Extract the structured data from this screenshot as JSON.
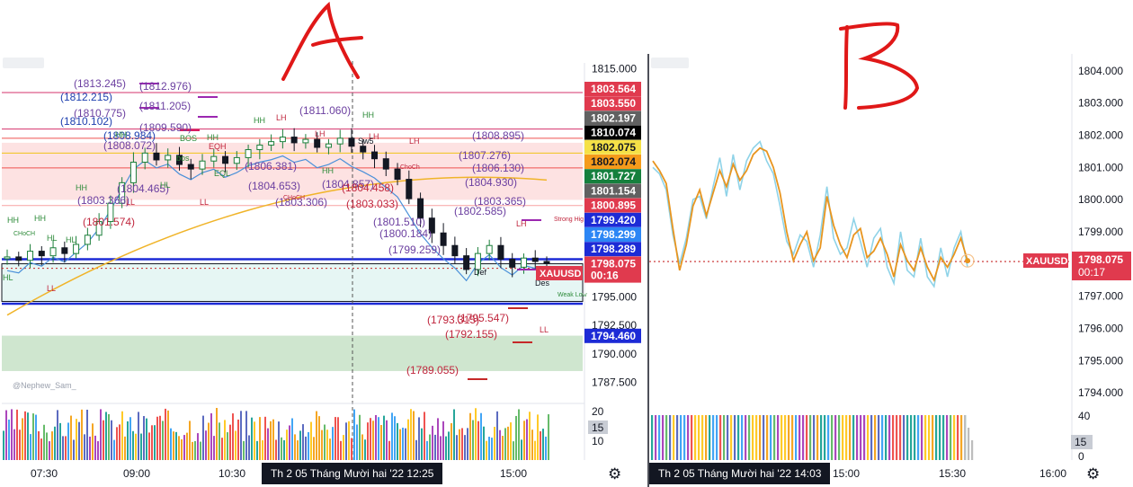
{
  "annotations": {
    "left_letter": "A",
    "right_letter": "B"
  },
  "left_panel": {
    "watermark": "@Nephew_Sam_",
    "date_badge": "Th 2 05 Tháng Mười hai '22   12:25",
    "time_labels": [
      "07:30",
      "09:00",
      "10:30",
      "15:00"
    ],
    "price_ticks": [
      "1815.000",
      "1795.000",
      "1792.500",
      "1790.000",
      "1787.500"
    ],
    "volume_ticks": [
      "20",
      "15",
      "10"
    ],
    "volume_badge": "15",
    "price_badges": [
      {
        "text": "1803.564",
        "bg": "#e03a4e",
        "fg": "#ffffff"
      },
      {
        "text": "1803.550",
        "bg": "#e03a4e",
        "fg": "#ffffff"
      },
      {
        "text": "1802.197",
        "bg": "#616161",
        "fg": "#ffffff"
      },
      {
        "text": "1810.074",
        "bg": "#000000",
        "fg": "#ffffff"
      },
      {
        "text": "1802.075",
        "bg": "#f5e147",
        "fg": "#131722"
      },
      {
        "text": "1802.074",
        "bg": "#f59b1b",
        "fg": "#131722"
      },
      {
        "text": "1801.727",
        "bg": "#15803d",
        "fg": "#ffffff"
      },
      {
        "text": "1801.154",
        "bg": "#616161",
        "fg": "#ffffff"
      },
      {
        "text": "1800.895",
        "bg": "#e03a4e",
        "fg": "#ffffff"
      },
      {
        "text": "1799.420",
        "bg": "#1d2bd6",
        "fg": "#ffffff"
      },
      {
        "text": "1798.299",
        "bg": "#2c86f5",
        "fg": "#ffffff"
      },
      {
        "text": "1798.289",
        "bg": "#1d2bd6",
        "fg": "#ffffff"
      },
      {
        "text": "1798.075",
        "bg": "#e03a4e",
        "fg": "#ffffff"
      },
      {
        "text": "00:16",
        "bg": "#e03a4e",
        "fg": "#ffffff"
      },
      {
        "text": "1794.460",
        "bg": "#1d2bd6",
        "fg": "#ffffff"
      }
    ],
    "symbol_tag": "XAUUSD",
    "level_labels": [
      {
        "text": "(1813.245)",
        "color": "#6b3fa0"
      },
      {
        "text": "(1812.976)",
        "color": "#6b3fa0"
      },
      {
        "text": "(1812.215)",
        "color": "#1e40af"
      },
      {
        "text": "(1810.775)",
        "color": "#6b3fa0"
      },
      {
        "text": "(1811.205)",
        "color": "#6b3fa0"
      },
      {
        "text": "(1810.102)",
        "color": "#1e40af"
      },
      {
        "text": "(1809.590)",
        "color": "#6b3fa0"
      },
      {
        "text": "(1811.060)",
        "color": "#6b3fa0"
      },
      {
        "text": "(1808.984)",
        "color": "#1e40af"
      },
      {
        "text": "(1808.072)",
        "color": "#6b3fa0"
      },
      {
        "text": "(1808.895)",
        "color": "#6b3fa0"
      },
      {
        "text": "(1807.276)",
        "color": "#6b3fa0"
      },
      {
        "text": "(1806.381)",
        "color": "#6b3fa0"
      },
      {
        "text": "(1806.130)",
        "color": "#6b3fa0"
      },
      {
        "text": "(1804.653)",
        "color": "#6b3fa0"
      },
      {
        "text": "(1804.857)",
        "color": "#6b3fa0"
      },
      {
        "text": "(1804.930)",
        "color": "#6b3fa0"
      },
      {
        "text": "(1804.465)",
        "color": "#6b3fa0"
      },
      {
        "text": "(1804.458)",
        "color": "#c0263d"
      },
      {
        "text": "(1803.366)",
        "color": "#6b3fa0"
      },
      {
        "text": "(1803.306)",
        "color": "#6b3fa0"
      },
      {
        "text": "(1803.033)",
        "color": "#c0263d"
      },
      {
        "text": "(1803.365)",
        "color": "#6b3fa0"
      },
      {
        "text": "(1802.585)",
        "color": "#6b3fa0"
      },
      {
        "text": "(1801.574)",
        "color": "#c0263d"
      },
      {
        "text": "(1801.510)",
        "color": "#6b3fa0"
      },
      {
        "text": "(1800.184)",
        "color": "#6b3fa0"
      },
      {
        "text": "(1799.259)",
        "color": "#6b3fa0"
      },
      {
        "text": "(1795.547)",
        "color": "#c0263d"
      },
      {
        "text": "(1793.315)",
        "color": "#c0263d"
      },
      {
        "text": "(1792.155)",
        "color": "#c0263d"
      },
      {
        "text": "(1789.055)",
        "color": "#c0263d"
      }
    ],
    "structure_tags": [
      {
        "text": "HH",
        "color": "#2e8b3a"
      },
      {
        "text": "HH",
        "color": "#2e8b3a"
      },
      {
        "text": "HH",
        "color": "#2e8b3a"
      },
      {
        "text": "HH",
        "color": "#2e8b3a"
      },
      {
        "text": "HH",
        "color": "#2e8b3a"
      },
      {
        "text": "HH",
        "color": "#2e8b3a"
      },
      {
        "text": "HH",
        "color": "#2e8b3a"
      },
      {
        "text": "HH",
        "color": "#2e8b3a"
      },
      {
        "text": "HL",
        "color": "#2e8b3a"
      },
      {
        "text": "HL",
        "color": "#2e8b3a"
      },
      {
        "text": "HL",
        "color": "#2e8b3a"
      },
      {
        "text": "HL",
        "color": "#2e8b3a"
      },
      {
        "text": "LL",
        "color": "#c0263d"
      },
      {
        "text": "LL",
        "color": "#c0263d"
      },
      {
        "text": "LL",
        "color": "#c0263d"
      },
      {
        "text": "LL",
        "color": "#c0263d"
      },
      {
        "text": "LH",
        "color": "#c0263d"
      },
      {
        "text": "LH",
        "color": "#c0263d"
      },
      {
        "text": "LH",
        "color": "#c0263d"
      },
      {
        "text": "LH",
        "color": "#c0263d"
      },
      {
        "text": "LH",
        "color": "#c0263d"
      },
      {
        "text": "CHoCH",
        "color": "#2e8b3a"
      },
      {
        "text": "CHoCH",
        "color": "#c0263d"
      },
      {
        "text": "ChoCh",
        "color": "#c0263d"
      },
      {
        "text": "BOS",
        "color": "#2e8b3a"
      },
      {
        "text": "bos",
        "color": "#2e8b3a"
      },
      {
        "text": "EQL",
        "color": "#2e8b3a"
      },
      {
        "text": "EQH",
        "color": "#c0263d"
      },
      {
        "text": "Strong High",
        "color": "#c0263d"
      },
      {
        "text": "Weak Low",
        "color": "#2e8b3a"
      },
      {
        "text": "Sw5",
        "color": "#131722"
      },
      {
        "text": "Def",
        "color": "#131722"
      },
      {
        "text": "Des",
        "color": "#131722"
      }
    ]
  },
  "right_panel": {
    "date_badge": "Th 2 05 Tháng Mười hai '22   14:03",
    "time_labels": [
      "15:00",
      "15:30",
      "16:00"
    ],
    "price_ticks": [
      "1804.000",
      "1803.000",
      "1802.000",
      "1801.000",
      "1800.000",
      "1799.000",
      "1798.000",
      "1797.000",
      "1796.000",
      "1795.000",
      "1794.000"
    ],
    "volume_ticks": [
      "40",
      "0"
    ],
    "volume_badge": "15",
    "symbol_tag": "XAUUSD",
    "price_badge": "1798.075",
    "timer_badge": "00:17"
  },
  "chart_data": [
    {
      "type": "line",
      "title": "",
      "xlabel": "",
      "ylabel": "",
      "ylim": [
        1787.0,
        1815.5
      ],
      "x_ticks": [
        "07:30",
        "09:00",
        "10:30",
        "15:00"
      ],
      "y_ticks": [
        1815.0,
        1795.0,
        1792.5,
        1790.0,
        1787.5
      ],
      "series": [
        {
          "values": [
            1798.5,
            1798.2,
            1799.0,
            1798.6,
            1799.3,
            1798.8,
            1799.6,
            1800.4,
            1801.6,
            1803.2,
            1805.0,
            1806.8,
            1807.6,
            1807.0,
            1807.4,
            1806.6,
            1806.2,
            1806.9,
            1807.3,
            1806.7,
            1807.2,
            1807.9,
            1808.3,
            1808.6,
            1809.0,
            1808.5,
            1808.8,
            1808.1,
            1808.4,
            1808.9,
            1808.2,
            1807.7,
            1807.1,
            1806.2,
            1805.3,
            1803.6,
            1801.9,
            1800.6,
            1799.5,
            1798.6,
            1797.4,
            1798.8,
            1799.5,
            1798.3,
            1797.6,
            1798.4,
            1798.1,
            1798.0
          ]
        }
      ],
      "horizontal_levels": [
        1812.9,
        1809.7,
        1808.9,
        1807.6,
        1806.3,
        1803.0,
        1798.3,
        1797.5,
        1794.4
      ],
      "zones": [
        {
          "from": 1803.5,
          "to": 1808.5,
          "color": "#fde2e2"
        },
        {
          "from": 1794.6,
          "to": 1797.9,
          "color": "#e6f6f4"
        },
        {
          "from": 1788.5,
          "to": 1791.6,
          "color": "#cfe6cf"
        }
      ]
    },
    {
      "type": "line",
      "title": "",
      "xlabel": "",
      "ylabel": "",
      "ylim": [
        1793.5,
        1804.3
      ],
      "x_ticks": [
        "15:00",
        "15:30",
        "16:00"
      ],
      "y_ticks": [
        1804.0,
        1803.0,
        1802.0,
        1801.0,
        1800.0,
        1799.0,
        1798.0,
        1797.0,
        1796.0,
        1795.0,
        1794.0
      ],
      "series": [
        {
          "values": [
            1801.2,
            1800.9,
            1800.5,
            1799.1,
            1797.8,
            1798.6,
            1799.8,
            1800.3,
            1799.5,
            1800.2,
            1800.9,
            1800.4,
            1801.1,
            1800.6,
            1800.9,
            1801.4,
            1801.6,
            1801.5,
            1801.0,
            1800.2,
            1799.0,
            1798.1,
            1798.6,
            1799.0,
            1798.1,
            1798.5,
            1800.1,
            1799.2,
            1798.6,
            1798.2,
            1798.9,
            1799.1,
            1798.2,
            1798.4,
            1798.8,
            1798.3,
            1797.6,
            1798.6,
            1798.1,
            1797.8,
            1798.5,
            1797.9,
            1797.5,
            1798.2,
            1797.9,
            1798.3,
            1798.8,
            1798.1
          ]
        },
        {
          "values": [
            1801.0,
            1800.8,
            1800.3,
            1798.9,
            1798.0,
            1798.8,
            1800.0,
            1800.1,
            1799.4,
            1800.4,
            1801.3,
            1800.1,
            1801.4,
            1800.3,
            1801.2,
            1801.6,
            1801.8,
            1801.2,
            1800.8,
            1799.8,
            1798.7,
            1798.3,
            1798.9,
            1798.7,
            1797.9,
            1798.9,
            1800.4,
            1798.8,
            1798.3,
            1798.5,
            1799.4,
            1798.7,
            1797.9,
            1798.8,
            1799.1,
            1797.9,
            1797.4,
            1799.0,
            1797.8,
            1797.6,
            1798.8,
            1797.6,
            1797.3,
            1798.5,
            1797.6,
            1798.5,
            1799.0,
            1797.9
          ]
        }
      ],
      "current_price": 1798.075
    }
  ]
}
